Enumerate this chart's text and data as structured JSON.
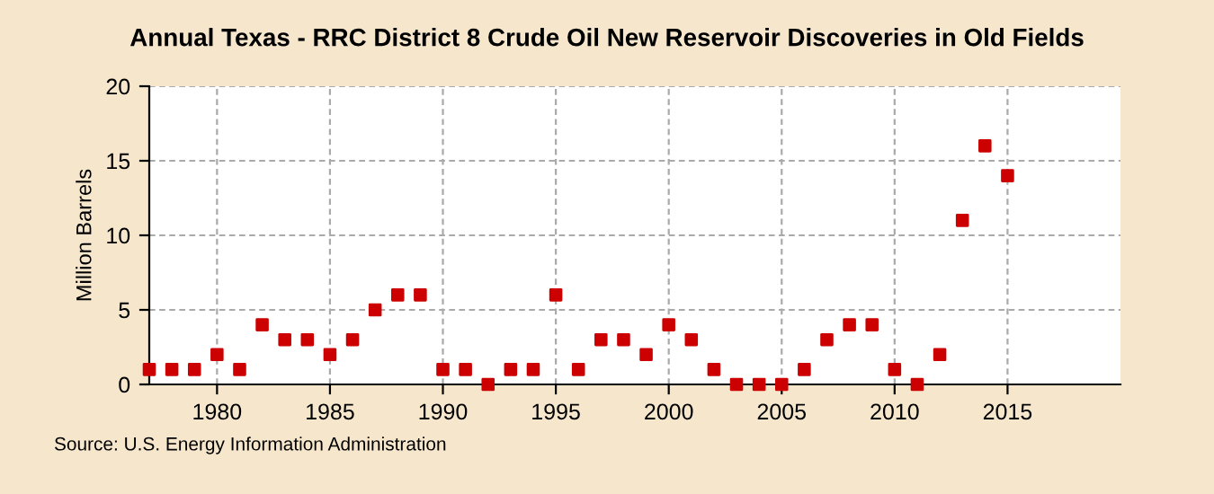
{
  "chart_data": {
    "type": "scatter",
    "title": "Annual Texas - RRC District 8 Crude Oil New Reservoir Discoveries in Old Fields",
    "ylabel": "Million Barrels",
    "x": [
      1977,
      1978,
      1979,
      1980,
      1981,
      1982,
      1983,
      1984,
      1985,
      1986,
      1987,
      1988,
      1989,
      1990,
      1991,
      1992,
      1993,
      1994,
      1995,
      1996,
      1997,
      1998,
      1999,
      2000,
      2001,
      2002,
      2003,
      2004,
      2005,
      2006,
      2007,
      2008,
      2009,
      2010,
      2011,
      2012,
      2013,
      2014,
      2015
    ],
    "series": [
      {
        "color": "#cc0000",
        "values": [
          1,
          1,
          1,
          2,
          1,
          4,
          3,
          3,
          2,
          3,
          5,
          6,
          6,
          1,
          1,
          0,
          1,
          1,
          6,
          1,
          3,
          3,
          2,
          4,
          3,
          1,
          0,
          0,
          0,
          1,
          3,
          4,
          4,
          1,
          0,
          2,
          11,
          16,
          14
        ]
      }
    ],
    "xlim": [
      1977,
      2020
    ],
    "xticks": [
      1980,
      1985,
      1990,
      1995,
      2000,
      2005,
      2010,
      2015
    ],
    "ylim": [
      0,
      20
    ],
    "yticks": [
      0,
      5,
      10,
      15,
      20
    ],
    "grid": true,
    "marker": "square",
    "annotations": [
      "Source: U.S. Energy Information Administration"
    ]
  }
}
